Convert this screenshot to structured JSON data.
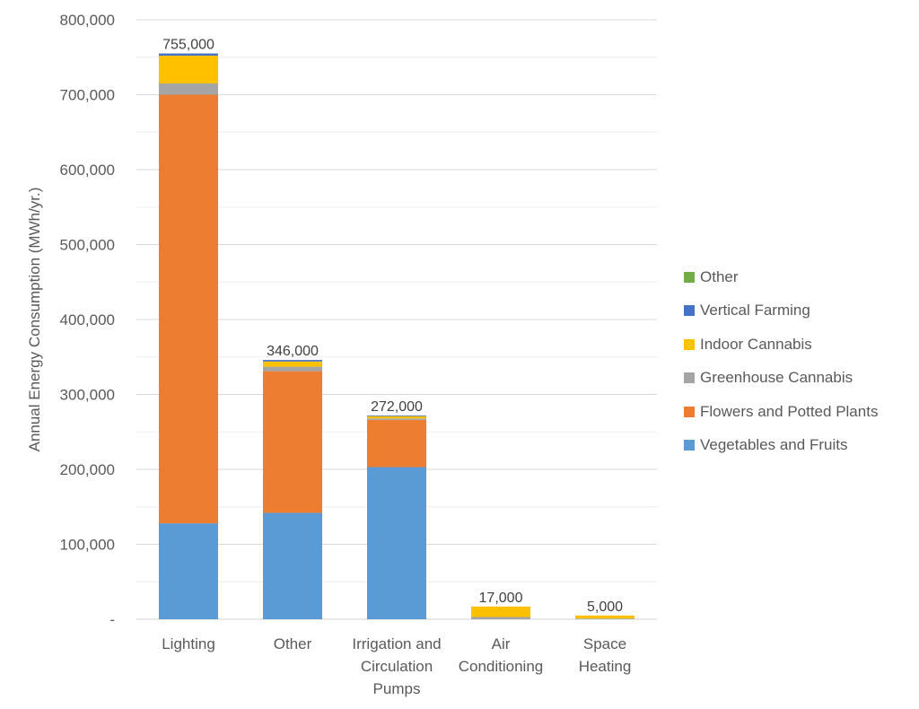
{
  "chart_data": {
    "type": "bar",
    "stacked": true,
    "ylabel": "Annual Energy Consumption (MWh/yr.)",
    "ylim": [
      0,
      800000
    ],
    "ytick_values": [
      0,
      100000,
      200000,
      300000,
      400000,
      500000,
      600000,
      700000,
      800000
    ],
    "ytick_labels": [
      "-",
      "100,000",
      "200,000",
      "300,000",
      "400,000",
      "500,000",
      "600,000",
      "700,000",
      "800,000"
    ],
    "categories": [
      [
        "Lighting"
      ],
      [
        "Other"
      ],
      [
        "Irrigation and",
        "Circulation",
        "Pumps"
      ],
      [
        "Air",
        "Conditioning"
      ],
      [
        "Space",
        "Heating"
      ]
    ],
    "totals": [
      "755,000",
      "346,000",
      "272,000",
      "17,000",
      "5,000"
    ],
    "series": [
      {
        "name": "Vegetables and Fruits",
        "color": "#5b9bd5",
        "values": [
          128000,
          142000,
          203000,
          0,
          0
        ]
      },
      {
        "name": "Flowers and Potted Plants",
        "color": "#ed7d31",
        "values": [
          572000,
          189000,
          63000,
          0,
          0
        ]
      },
      {
        "name": "Greenhouse Cannabis",
        "color": "#a5a5a5",
        "values": [
          15000,
          6000,
          2000,
          3000,
          1000
        ]
      },
      {
        "name": "Indoor Cannabis",
        "color": "#ffc000",
        "values": [
          37000,
          7000,
          3000,
          14000,
          4000
        ]
      },
      {
        "name": "Vertical Farming",
        "color": "#4472c4",
        "values": [
          3000,
          2000,
          1000,
          0,
          0
        ]
      },
      {
        "name": "Other",
        "color": "#70ad47",
        "values": [
          0,
          0,
          0,
          0,
          0
        ]
      }
    ],
    "legend_position": "right",
    "grid": true
  }
}
